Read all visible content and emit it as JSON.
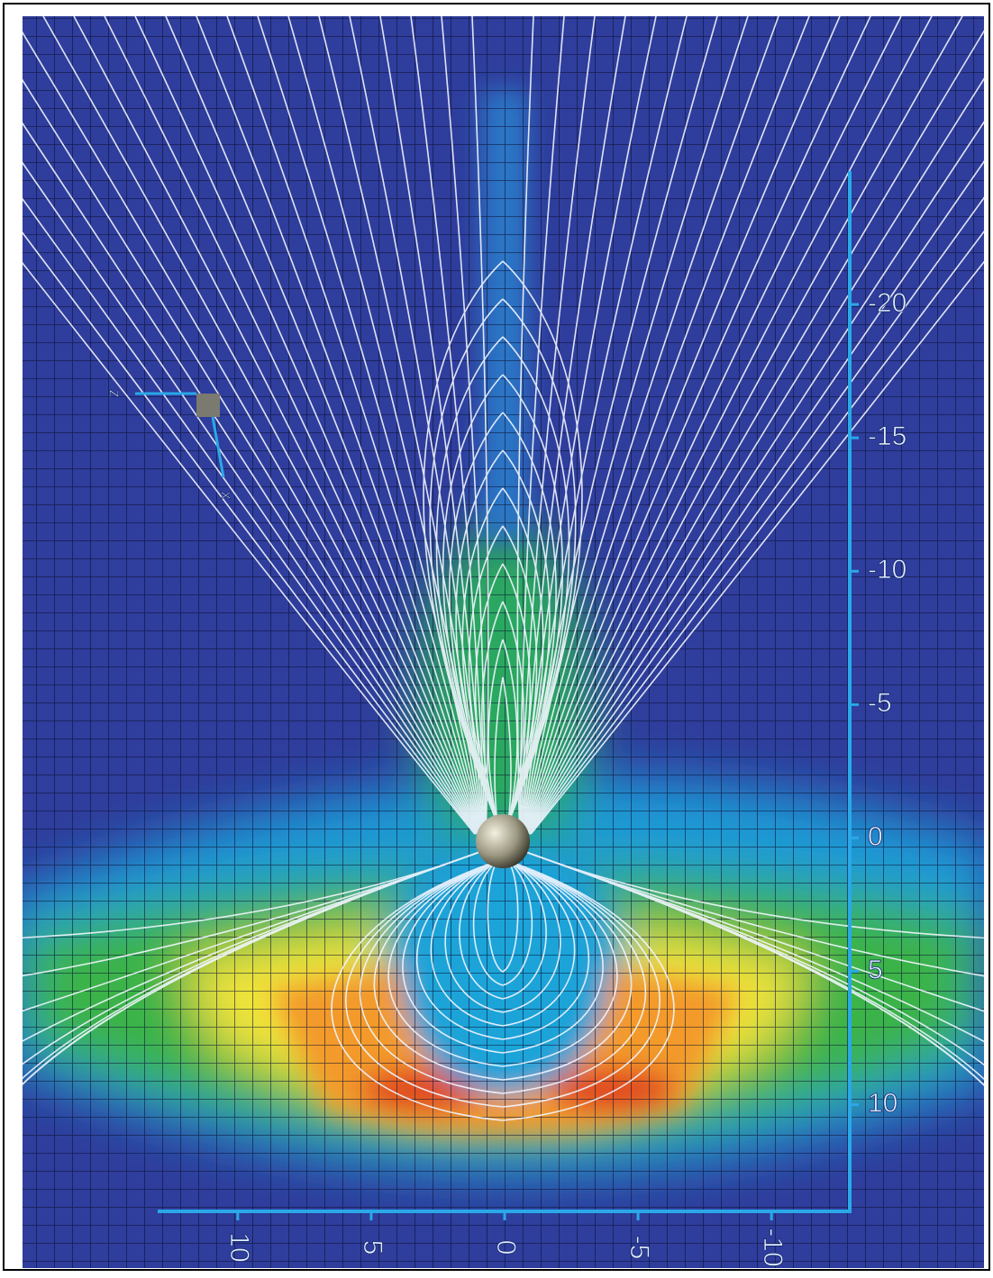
{
  "chart_data": {
    "type": "field",
    "xlim": [
      13,
      -13
    ],
    "xticks": [
      10,
      5,
      0,
      -5,
      -10
    ],
    "ylim": [
      -25,
      14
    ],
    "yticks": [
      -20,
      -15,
      -10,
      -5,
      0,
      5,
      10
    ],
    "axis_indicator": [
      "z",
      "x"
    ]
  }
}
